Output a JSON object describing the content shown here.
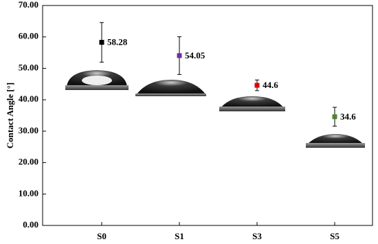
{
  "chart_data": {
    "type": "scatter",
    "y_label": "Contact Angle [°]",
    "categories": [
      "S0",
      "S1",
      "S3",
      "S5"
    ],
    "values": [
      58.28,
      54.05,
      44.6,
      34.6
    ],
    "errors": [
      6.3,
      6.0,
      1.7,
      3.0
    ],
    "colors": [
      "#000000",
      "#7030a0",
      "#e00000",
      "#548235"
    ],
    "ylim": [
      0,
      70
    ],
    "yticks": [
      {
        "value": 0,
        "label": "0.00"
      },
      {
        "value": 10,
        "label": "10.00"
      },
      {
        "value": 20,
        "label": "20.00"
      },
      {
        "value": 30,
        "label": "30.00"
      },
      {
        "value": 40,
        "label": "40.00"
      },
      {
        "value": 50,
        "label": "50.00"
      },
      {
        "value": 60,
        "label": "60.00"
      },
      {
        "value": 70,
        "label": "70.00"
      }
    ],
    "grid": false
  }
}
